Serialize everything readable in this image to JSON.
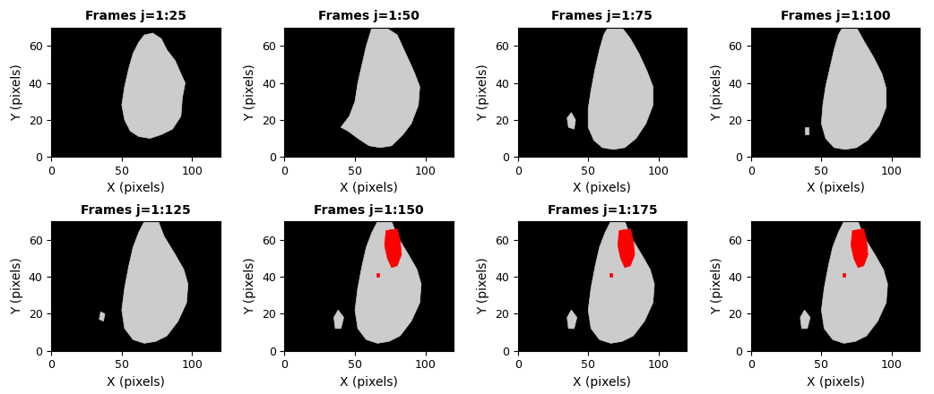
{
  "chart_data": [
    {
      "type": "image",
      "title": "Frames j=1:25",
      "x_label": "X (pixels)",
      "y_label": "Y (pixels)",
      "xlim": [
        0,
        120
      ],
      "ylim": [
        0,
        70
      ],
      "xticks": [
        0,
        50,
        100
      ],
      "yticks": [
        0,
        20,
        40,
        60
      ],
      "regions": [
        {
          "color": "#cccccc",
          "polygons": [
            [
              [
                66,
                66
              ],
              [
                72,
                67
              ],
              [
                78,
                64
              ],
              [
                82,
                58
              ],
              [
                88,
                52
              ],
              [
                92,
                45
              ],
              [
                95,
                40
              ],
              [
                93,
                32
              ],
              [
                92,
                22
              ],
              [
                86,
                15
              ],
              [
                78,
                12
              ],
              [
                70,
                10
              ],
              [
                62,
                11
              ],
              [
                56,
                14
              ],
              [
                52,
                20
              ],
              [
                50,
                28
              ],
              [
                52,
                38
              ],
              [
                55,
                48
              ],
              [
                58,
                56
              ],
              [
                62,
                62
              ]
            ]
          ]
        }
      ]
    },
    {
      "type": "image",
      "title": "Frames j=1:50",
      "x_label": "X (pixels)",
      "y_label": "Y (pixels)",
      "xlim": [
        0,
        120
      ],
      "ylim": [
        0,
        70
      ],
      "xticks": [
        0,
        50,
        100
      ],
      "yticks": [
        0,
        20,
        40,
        60
      ],
      "regions": [
        {
          "color": "#cccccc",
          "polygons": [
            [
              [
                62,
                70
              ],
              [
                72,
                70
              ],
              [
                80,
                66
              ],
              [
                86,
                56
              ],
              [
                92,
                46
              ],
              [
                96,
                38
              ],
              [
                95,
                28
              ],
              [
                90,
                18
              ],
              [
                84,
                12
              ],
              [
                76,
                6
              ],
              [
                68,
                5
              ],
              [
                60,
                6
              ],
              [
                52,
                10
              ],
              [
                45,
                14
              ],
              [
                40,
                16
              ],
              [
                46,
                22
              ],
              [
                50,
                30
              ],
              [
                52,
                40
              ],
              [
                55,
                50
              ],
              [
                58,
                60
              ]
            ]
          ]
        }
      ]
    },
    {
      "type": "image",
      "title": "Frames j=1:75",
      "x_label": "X (pixels)",
      "y_label": "Y (pixels)",
      "xlim": [
        0,
        120
      ],
      "ylim": [
        0,
        70
      ],
      "xticks": [
        0,
        50,
        100
      ],
      "yticks": [
        0,
        20,
        40,
        60
      ],
      "regions": [
        {
          "color": "#cccccc",
          "polygons": [
            [
              [
                64,
                70
              ],
              [
                74,
                70
              ],
              [
                80,
                64
              ],
              [
                86,
                56
              ],
              [
                92,
                46
              ],
              [
                96,
                38
              ],
              [
                96,
                28
              ],
              [
                91,
                18
              ],
              [
                84,
                10
              ],
              [
                76,
                5
              ],
              [
                68,
                4
              ],
              [
                60,
                5
              ],
              [
                54,
                9
              ],
              [
                50,
                16
              ],
              [
                50,
                26
              ],
              [
                52,
                36
              ],
              [
                55,
                48
              ],
              [
                58,
                58
              ],
              [
                61,
                66
              ]
            ],
            [
              [
                36,
                16
              ],
              [
                40,
                15
              ],
              [
                41,
                20
              ],
              [
                38,
                24
              ],
              [
                35,
                21
              ]
            ]
          ]
        }
      ]
    },
    {
      "type": "image",
      "title": "Frames j=1:100",
      "x_label": "X (pixels)",
      "y_label": "Y (pixels)",
      "xlim": [
        0,
        120
      ],
      "ylim": [
        0,
        70
      ],
      "xticks": [
        0,
        50,
        100
      ],
      "yticks": [
        0,
        20,
        40,
        60
      ],
      "regions": [
        {
          "color": "#cccccc",
          "polygons": [
            [
              [
                65,
                70
              ],
              [
                75,
                70
              ],
              [
                80,
                63
              ],
              [
                87,
                54
              ],
              [
                93,
                45
              ],
              [
                96,
                37
              ],
              [
                96,
                27
              ],
              [
                91,
                17
              ],
              [
                83,
                9
              ],
              [
                75,
                5
              ],
              [
                67,
                4
              ],
              [
                59,
                5
              ],
              [
                53,
                10
              ],
              [
                50,
                18
              ],
              [
                51,
                28
              ],
              [
                53,
                38
              ],
              [
                56,
                48
              ],
              [
                59,
                58
              ],
              [
                62,
                66
              ]
            ],
            [
              [
                38,
                12
              ],
              [
                41,
                12
              ],
              [
                41,
                16
              ],
              [
                38,
                16
              ]
            ]
          ]
        }
      ]
    },
    {
      "type": "image",
      "title": "Frames j=1:125",
      "x_label": "X (pixels)",
      "y_label": "Y (pixels)",
      "xlim": [
        0,
        120
      ],
      "ylim": [
        0,
        70
      ],
      "xticks": [
        0,
        50,
        100
      ],
      "yticks": [
        0,
        20,
        40,
        60
      ],
      "regions": [
        {
          "color": "#cccccc",
          "polygons": [
            [
              [
                66,
                70
              ],
              [
                76,
                70
              ],
              [
                80,
                62
              ],
              [
                88,
                52
              ],
              [
                94,
                44
              ],
              [
                97,
                36
              ],
              [
                96,
                26
              ],
              [
                90,
                16
              ],
              [
                82,
                8
              ],
              [
                74,
                5
              ],
              [
                66,
                4
              ],
              [
                58,
                6
              ],
              [
                52,
                12
              ],
              [
                50,
                22
              ],
              [
                52,
                34
              ],
              [
                55,
                46
              ],
              [
                58,
                56
              ],
              [
                62,
                64
              ]
            ],
            [
              [
                34,
                17
              ],
              [
                37,
                16
              ],
              [
                38,
                20
              ],
              [
                35,
                21
              ]
            ]
          ]
        }
      ]
    },
    {
      "type": "image",
      "title": "Frames j=1:150",
      "x_label": "X (pixels)",
      "y_label": "Y (pixels)",
      "xlim": [
        0,
        120
      ],
      "ylim": [
        0,
        70
      ],
      "xticks": [
        0,
        50,
        100
      ],
      "yticks": [
        0,
        20,
        40,
        60
      ],
      "regions": [
        {
          "color": "#cccccc",
          "polygons": [
            [
              [
                66,
                70
              ],
              [
                76,
                70
              ],
              [
                80,
                62
              ],
              [
                88,
                52
              ],
              [
                94,
                44
              ],
              [
                97,
                36
              ],
              [
                96,
                26
              ],
              [
                90,
                16
              ],
              [
                82,
                8
              ],
              [
                74,
                5
              ],
              [
                66,
                4
              ],
              [
                58,
                6
              ],
              [
                52,
                12
              ],
              [
                50,
                22
              ],
              [
                52,
                34
              ],
              [
                55,
                46
              ],
              [
                58,
                56
              ],
              [
                62,
                64
              ]
            ],
            [
              [
                36,
                12
              ],
              [
                40,
                12
              ],
              [
                42,
                18
              ],
              [
                38,
                22
              ],
              [
                35,
                18
              ]
            ]
          ]
        },
        {
          "color": "#ff0000",
          "polygons": [
            [
              [
                72,
                65
              ],
              [
                80,
                66
              ],
              [
                82,
                60
              ],
              [
                83,
                52
              ],
              [
                80,
                46
              ],
              [
                76,
                45
              ],
              [
                73,
                50
              ],
              [
                71,
                57
              ]
            ],
            [
              [
                65,
                40
              ],
              [
                67,
                40
              ],
              [
                67,
                42
              ],
              [
                65,
                42
              ]
            ]
          ]
        }
      ]
    },
    {
      "type": "image",
      "title": "Frames j=1:175",
      "x_label": "X (pixels)",
      "y_label": "Y (pixels)",
      "xlim": [
        0,
        120
      ],
      "ylim": [
        0,
        70
      ],
      "xticks": [
        0,
        50,
        100
      ],
      "yticks": [
        0,
        20,
        40,
        60
      ],
      "regions": [
        {
          "color": "#cccccc",
          "polygons": [
            [
              [
                66,
                70
              ],
              [
                76,
                70
              ],
              [
                80,
                62
              ],
              [
                88,
                52
              ],
              [
                94,
                44
              ],
              [
                97,
                36
              ],
              [
                96,
                26
              ],
              [
                90,
                16
              ],
              [
                82,
                8
              ],
              [
                74,
                5
              ],
              [
                66,
                4
              ],
              [
                58,
                6
              ],
              [
                52,
                12
              ],
              [
                50,
                22
              ],
              [
                52,
                34
              ],
              [
                55,
                46
              ],
              [
                58,
                56
              ],
              [
                62,
                64
              ]
            ],
            [
              [
                36,
                12
              ],
              [
                40,
                12
              ],
              [
                42,
                18
              ],
              [
                38,
                22
              ],
              [
                35,
                18
              ]
            ]
          ]
        },
        {
          "color": "#ff0000",
          "polygons": [
            [
              [
                72,
                65
              ],
              [
                80,
                66
              ],
              [
                82,
                60
              ],
              [
                83,
                52
              ],
              [
                80,
                46
              ],
              [
                76,
                45
              ],
              [
                73,
                50
              ],
              [
                71,
                57
              ]
            ],
            [
              [
                65,
                40
              ],
              [
                67,
                40
              ],
              [
                67,
                42
              ],
              [
                65,
                42
              ]
            ]
          ]
        }
      ]
    },
    {
      "type": "image",
      "x_label": "X (pixels)",
      "y_label": "Y (pixels)",
      "xlim": [
        0,
        120
      ],
      "ylim": [
        0,
        70
      ],
      "xticks": [
        0,
        50,
        100
      ],
      "yticks": [
        0,
        20,
        40,
        60
      ],
      "regions": [
        {
          "color": "#cccccc",
          "polygons": [
            [
              [
                66,
                70
              ],
              [
                76,
                70
              ],
              [
                80,
                62
              ],
              [
                88,
                52
              ],
              [
                94,
                44
              ],
              [
                97,
                36
              ],
              [
                96,
                26
              ],
              [
                90,
                16
              ],
              [
                82,
                8
              ],
              [
                74,
                5
              ],
              [
                66,
                4
              ],
              [
                58,
                6
              ],
              [
                52,
                12
              ],
              [
                50,
                22
              ],
              [
                52,
                34
              ],
              [
                55,
                46
              ],
              [
                58,
                56
              ],
              [
                62,
                64
              ]
            ],
            [
              [
                36,
                12
              ],
              [
                40,
                12
              ],
              [
                42,
                18
              ],
              [
                38,
                22
              ],
              [
                35,
                18
              ]
            ]
          ]
        },
        {
          "color": "#ff0000",
          "polygons": [
            [
              [
                72,
                65
              ],
              [
                80,
                66
              ],
              [
                82,
                60
              ],
              [
                83,
                52
              ],
              [
                80,
                46
              ],
              [
                76,
                45
              ],
              [
                73,
                50
              ],
              [
                71,
                57
              ]
            ],
            [
              [
                65,
                40
              ],
              [
                67,
                40
              ],
              [
                67,
                42
              ],
              [
                65,
                42
              ]
            ]
          ]
        }
      ]
    }
  ]
}
